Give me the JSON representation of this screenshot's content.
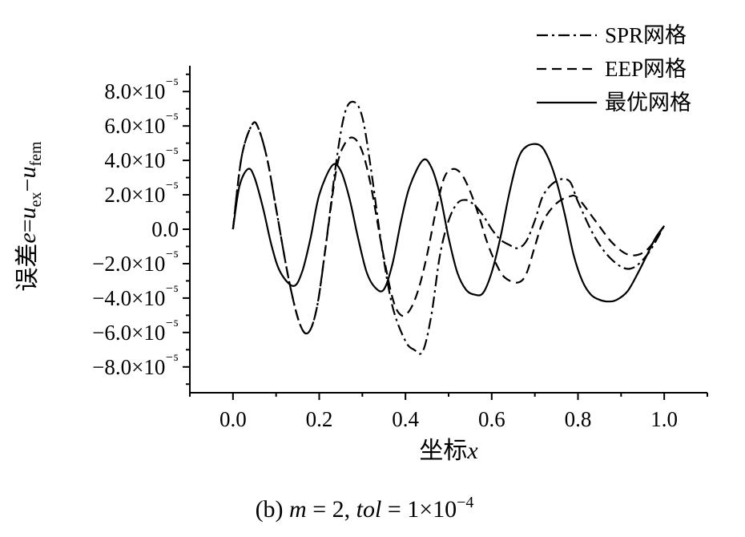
{
  "chart_data": {
    "type": "line",
    "xlabel": "坐标x",
    "ylabel": "误差e=u_ex−u_fem",
    "caption": "(b)  m = 2, tol = 1×10⁻⁴",
    "xlim": [
      -0.1,
      1.1
    ],
    "ylim": [
      -9.5e-05,
      9.5e-05
    ],
    "xticks": [
      0.0,
      0.2,
      0.4,
      0.6,
      0.8,
      1.0
    ],
    "xtick_labels": [
      "0.0",
      "0.2",
      "0.4",
      "0.6",
      "0.8",
      "1.0"
    ],
    "yticks": [
      8e-05,
      6e-05,
      4e-05,
      2e-05,
      0,
      -2e-05,
      -4e-05,
      -6e-05,
      -8e-05
    ],
    "ytick_labels": [
      "8.0×10⁻⁵",
      "6.0×10⁻⁵",
      "4.0×10⁻⁵",
      "2.0×10⁻⁵",
      "0.0",
      "−2.0×10⁻⁵",
      "−4.0×10⁻⁵",
      "−6.0×10⁻⁵",
      "−8.0×10⁻⁵"
    ],
    "grid": false,
    "legend_position": "top-right",
    "series": [
      {
        "name": "SPR网格",
        "dash": "dashdot",
        "x": [
          0,
          0.02,
          0.045,
          0.06,
          0.08,
          0.1,
          0.13,
          0.155,
          0.175,
          0.195,
          0.215,
          0.24,
          0.26,
          0.28,
          0.3,
          0.32,
          0.345,
          0.37,
          0.4,
          0.42,
          0.44,
          0.46,
          0.48,
          0.5,
          0.52,
          0.54,
          0.56,
          0.58,
          0.6,
          0.62,
          0.64,
          0.66,
          0.68,
          0.7,
          0.72,
          0.75,
          0.78,
          0.8,
          0.84,
          0.88,
          0.92,
          0.96,
          1.0
        ],
        "y": [
          0,
          4.2e-05,
          6.1e-05,
          5.8e-05,
          4e-05,
          1.2e-05,
          -3e-05,
          -5.5e-05,
          -6e-05,
          -4.5e-05,
          -1e-05,
          4e-05,
          6.8e-05,
          7.4e-05,
          6.5e-05,
          3.5e-05,
          -1e-05,
          -4.5e-05,
          -6.5e-05,
          -7e-05,
          -7.1e-05,
          -5e-05,
          -1.5e-05,
          5e-06,
          1.5e-05,
          1.7e-05,
          1.4e-05,
          8e-06,
          0,
          -6e-06,
          -9e-06,
          -1.1e-05,
          -7e-06,
          5e-06,
          2e-05,
          2.8e-05,
          2.8e-05,
          1.6e-05,
          -5e-06,
          -1.8e-05,
          -2.3e-05,
          -1.5e-05,
          2e-06
        ]
      },
      {
        "name": "EEP网格",
        "dash": "dashed",
        "x": [
          0,
          0.02,
          0.045,
          0.06,
          0.08,
          0.1,
          0.13,
          0.155,
          0.175,
          0.195,
          0.215,
          0.24,
          0.26,
          0.28,
          0.3,
          0.32,
          0.345,
          0.37,
          0.39,
          0.41,
          0.43,
          0.45,
          0.47,
          0.49,
          0.51,
          0.53,
          0.55,
          0.57,
          0.59,
          0.61,
          0.63,
          0.66,
          0.68,
          0.7,
          0.72,
          0.75,
          0.78,
          0.8,
          0.84,
          0.88,
          0.92,
          0.96,
          1.0
        ],
        "y": [
          0,
          4.2e-05,
          6.1e-05,
          5.8e-05,
          4e-05,
          1.2e-05,
          -3e-05,
          -5.5e-05,
          -6e-05,
          -4.5e-05,
          -1e-05,
          3.5e-05,
          5e-05,
          5.3e-05,
          4.5e-05,
          2.5e-05,
          -1e-05,
          -4e-05,
          -5e-05,
          -4.7e-05,
          -3.5e-05,
          -1.5e-05,
          1e-05,
          3e-05,
          3.5e-05,
          3.2e-05,
          2.2e-05,
          8e-06,
          -8e-06,
          -2e-05,
          -2.8e-05,
          -3.1e-05,
          -2.6e-05,
          -1e-05,
          5e-06,
          1.5e-05,
          1.9e-05,
          1.8e-05,
          5e-06,
          -8e-06,
          -1.5e-05,
          -1.2e-05,
          2e-06
        ]
      },
      {
        "name": "最优网格",
        "dash": "solid",
        "x": [
          0,
          0.015,
          0.035,
          0.05,
          0.07,
          0.09,
          0.11,
          0.14,
          0.16,
          0.18,
          0.2,
          0.23,
          0.25,
          0.27,
          0.29,
          0.31,
          0.33,
          0.35,
          0.37,
          0.39,
          0.41,
          0.44,
          0.46,
          0.48,
          0.5,
          0.52,
          0.54,
          0.56,
          0.58,
          0.6,
          0.62,
          0.64,
          0.66,
          0.68,
          0.71,
          0.73,
          0.75,
          0.77,
          0.79,
          0.81,
          0.83,
          0.85,
          0.87,
          0.89,
          0.915,
          0.94,
          0.96,
          0.98,
          1.0
        ],
        "y": [
          0,
          2.5e-05,
          3.5e-05,
          3e-05,
          1.2e-05,
          -1e-05,
          -2.5e-05,
          -3.3e-05,
          -2.5e-05,
          -5e-06,
          2e-05,
          3.7e-05,
          3.4e-05,
          1.8e-05,
          -5e-06,
          -2.5e-05,
          -3.4e-05,
          -3.5e-05,
          -2e-05,
          5e-06,
          2.5e-05,
          4e-05,
          3.6e-05,
          2e-05,
          -5e-06,
          -2.5e-05,
          -3.5e-05,
          -3.8e-05,
          -3.7e-05,
          -2.5e-05,
          -5e-06,
          2e-05,
          4e-05,
          4.8e-05,
          4.9e-05,
          4.2e-05,
          2.8e-05,
          8e-06,
          -1.5e-05,
          -3e-05,
          -3.8e-05,
          -4.1e-05,
          -4.2e-05,
          -4.1e-05,
          -3.6e-05,
          -2.5e-05,
          -1.5e-05,
          -5e-06,
          2e-06
        ]
      }
    ]
  }
}
